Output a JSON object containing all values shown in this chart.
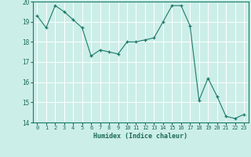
{
  "x": [
    0,
    1,
    2,
    3,
    4,
    5,
    6,
    7,
    8,
    9,
    10,
    11,
    12,
    13,
    14,
    15,
    16,
    17,
    18,
    19,
    20,
    21,
    22,
    23
  ],
  "y": [
    19.3,
    18.7,
    19.8,
    19.5,
    19.1,
    18.7,
    17.3,
    17.6,
    17.5,
    17.4,
    18.0,
    18.0,
    18.1,
    18.2,
    19.0,
    19.8,
    19.8,
    18.8,
    15.1,
    16.2,
    15.3,
    14.3,
    14.2,
    14.4
  ],
  "xlabel": "Humidex (Indice chaleur)",
  "ylim": [
    14,
    20
  ],
  "xlim": [
    -0.5,
    23.5
  ],
  "yticks": [
    14,
    15,
    16,
    17,
    18,
    19,
    20
  ],
  "xticks": [
    0,
    1,
    2,
    3,
    4,
    5,
    6,
    7,
    8,
    9,
    10,
    11,
    12,
    13,
    14,
    15,
    16,
    17,
    18,
    19,
    20,
    21,
    22,
    23
  ],
  "line_color": "#1a7a6a",
  "marker_color": "#1a7a6a",
  "bg_color": "#cceee8",
  "grid_color": "#ffffff",
  "tick_color": "#1a6a5a",
  "label_color": "#1a6a5a"
}
